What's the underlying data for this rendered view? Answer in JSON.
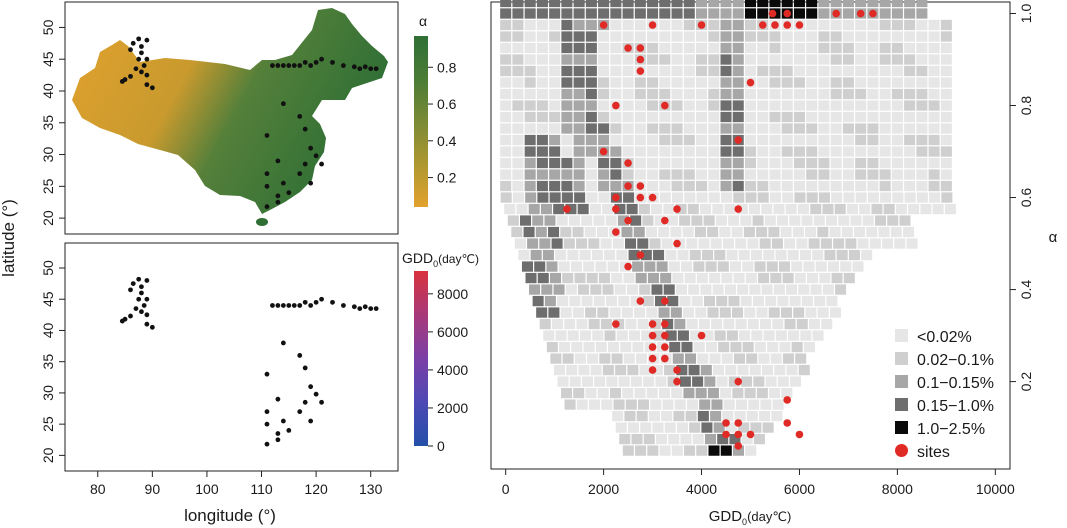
{
  "figure": {
    "left_panel": {
      "x_axis_label": "longitude (°)",
      "y_axis_label": "latitude (°)",
      "x_ticks": [
        "80",
        "90",
        "100",
        "110",
        "120",
        "130"
      ],
      "y_ticks": [
        "20",
        "25",
        "30",
        "35",
        "40",
        "45",
        "50"
      ]
    },
    "alpha_map": {
      "colorbar_title": "α",
      "colorbar_ticks": [
        "0.2",
        "0.4",
        "0.6",
        "0.8"
      ],
      "colors": [
        "#e2a22e",
        "#ae9830",
        "#7a8a35",
        "#4a7c36",
        "#2f6f35"
      ]
    },
    "gdd_map": {
      "colorbar_title": "GDD",
      "colorbar_title_sub": "0",
      "colorbar_title_unit": "(day℃)",
      "colorbar_ticks": [
        "0",
        "2000",
        "4000",
        "6000",
        "8000"
      ],
      "colors": [
        "#2450a8",
        "#4d49b5",
        "#7b3fa6",
        "#a83a7a",
        "#d8323d"
      ]
    },
    "sites_color": "#e02a26",
    "map_site_color": "#111111"
  },
  "chart_data": {
    "type": "heatmap",
    "x_axis_label": "GDD",
    "x_axis_label_sub": "0",
    "x_axis_label_unit": "(day℃)",
    "y_axis_label": "α",
    "x_ticks": [
      "0",
      "2000",
      "4000",
      "6000",
      "8000",
      "10000"
    ],
    "y_ticks": [
      "0.2",
      "0.4",
      "0.6",
      "0.8",
      "1.0"
    ],
    "xlim": [
      -300,
      10300
    ],
    "ylim": [
      0.01,
      1.025
    ],
    "cell_gdd_width": 250,
    "cell_alpha_height": 0.025,
    "legend_position": "bottom-right",
    "legend": [
      {
        "label": "<0.02%",
        "color": "#e6e6e6"
      },
      {
        "label": "0.02−0.1%",
        "color": "#cfcfcf"
      },
      {
        "label": "0.1−0.15%",
        "color": "#a7a7a7"
      },
      {
        "label": "0.15−1.0%",
        "color": "#6e6e6e"
      },
      {
        "label": "1.0−2.5%",
        "color": "#0a0a0a"
      },
      {
        "label": "sites",
        "color": "#e02a26"
      }
    ],
    "sites": [
      [
        2000,
        0.975
      ],
      [
        3000,
        0.975
      ],
      [
        4000,
        0.975
      ],
      [
        5250,
        0.975
      ],
      [
        5500,
        0.975
      ],
      [
        5750,
        0.975
      ],
      [
        6000,
        0.975
      ],
      [
        5450,
        1.0
      ],
      [
        5750,
        1.0
      ],
      [
        6750,
        1.0
      ],
      [
        7250,
        1.0
      ],
      [
        7500,
        1.0
      ],
      [
        2500,
        0.925
      ],
      [
        2750,
        0.925
      ],
      [
        2750,
        0.9
      ],
      [
        2750,
        0.875
      ],
      [
        5000,
        0.85
      ],
      [
        2250,
        0.8
      ],
      [
        3250,
        0.8
      ],
      [
        4750,
        0.725
      ],
      [
        2000,
        0.7
      ],
      [
        2500,
        0.675
      ],
      [
        2500,
        0.625
      ],
      [
        2750,
        0.625
      ],
      [
        2250,
        0.6
      ],
      [
        2750,
        0.6
      ],
      [
        3000,
        0.6
      ],
      [
        1250,
        0.575
      ],
      [
        2250,
        0.575
      ],
      [
        3500,
        0.575
      ],
      [
        4750,
        0.575
      ],
      [
        2500,
        0.55
      ],
      [
        3250,
        0.55
      ],
      [
        2250,
        0.525
      ],
      [
        3500,
        0.5
      ],
      [
        2750,
        0.475
      ],
      [
        2500,
        0.45
      ],
      [
        2750,
        0.375
      ],
      [
        3250,
        0.375
      ],
      [
        2250,
        0.325
      ],
      [
        3000,
        0.325
      ],
      [
        3250,
        0.325
      ],
      [
        3000,
        0.3
      ],
      [
        3250,
        0.3
      ],
      [
        4000,
        0.3
      ],
      [
        3000,
        0.275
      ],
      [
        3250,
        0.275
      ],
      [
        3000,
        0.25
      ],
      [
        3250,
        0.25
      ],
      [
        3000,
        0.225
      ],
      [
        3500,
        0.225
      ],
      [
        3500,
        0.2
      ],
      [
        4750,
        0.2
      ],
      [
        5750,
        0.16
      ],
      [
        4500,
        0.11
      ],
      [
        4750,
        0.11
      ],
      [
        5750,
        0.11
      ],
      [
        4500,
        0.085
      ],
      [
        4750,
        0.085
      ],
      [
        5000,
        0.085
      ],
      [
        6000,
        0.085
      ],
      [
        4750,
        0.06
      ]
    ]
  }
}
